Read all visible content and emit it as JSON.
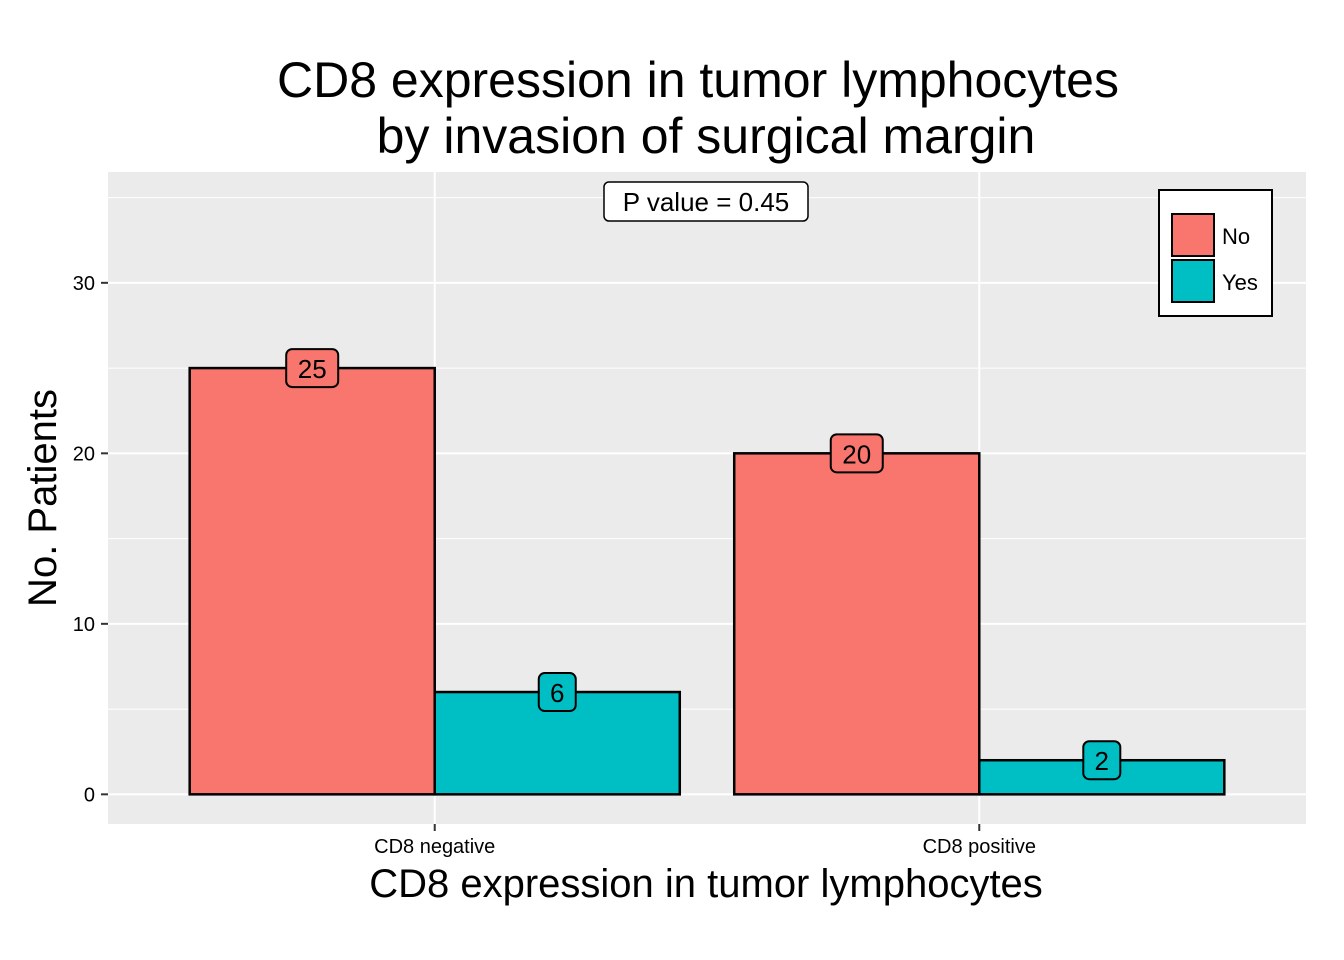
{
  "chart_data": {
    "type": "bar",
    "title_lines": [
      "CD8 expression in tumor lymphocytes",
      "by invasion of surgical margin"
    ],
    "xlabel": "CD8 expression in tumor lymphocytes",
    "ylabel": "No. Patients",
    "categories": [
      "CD8 negative",
      "CD8 positive"
    ],
    "series": [
      {
        "name": "No",
        "color": "#F8766D",
        "values": [
          25,
          20
        ]
      },
      {
        "name": "Yes",
        "color": "#00BFC4",
        "values": [
          6,
          2
        ]
      }
    ],
    "ylim": [
      -1.74,
      36.5
    ],
    "yticks": [
      0,
      10,
      20,
      30
    ],
    "annotation": "P value = 0.45",
    "legend_position": "top-right",
    "grid": true,
    "panel_color": "#EBEBEB"
  }
}
